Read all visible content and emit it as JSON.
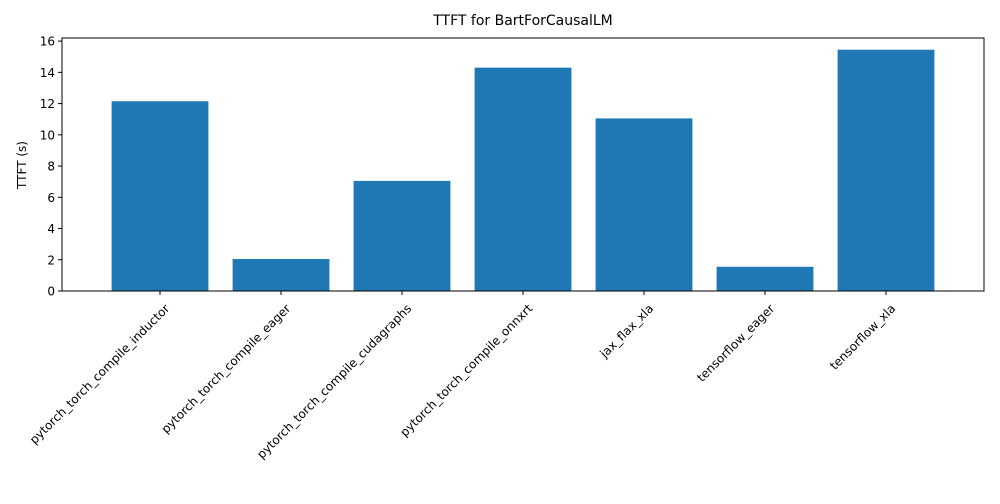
{
  "chart_data": {
    "type": "bar",
    "title": "TTFT for BartForCausalLM",
    "xlabel": "",
    "ylabel": "TTFT (s)",
    "categories": [
      "pytorch_torch_compile_inductor",
      "pytorch_torch_compile_eager",
      "pytorch_torch_compile_cudagraphs",
      "pytorch_torch_compile_onnxrt",
      "jax_flax_xla",
      "tensorflow_eager",
      "tensorflow_xla"
    ],
    "values": [
      12.15,
      2.05,
      7.05,
      14.3,
      11.05,
      1.55,
      15.45
    ],
    "ylim": [
      0,
      16.2
    ],
    "yticks": [
      0,
      2,
      4,
      6,
      8,
      10,
      12,
      14,
      16
    ],
    "ytick_labels": [
      "0",
      "2",
      "4",
      "6",
      "8",
      "10",
      "12",
      "14",
      "16"
    ],
    "bar_color": "#1f77b4",
    "grid": false,
    "xtick_rotation_deg": 45
  }
}
